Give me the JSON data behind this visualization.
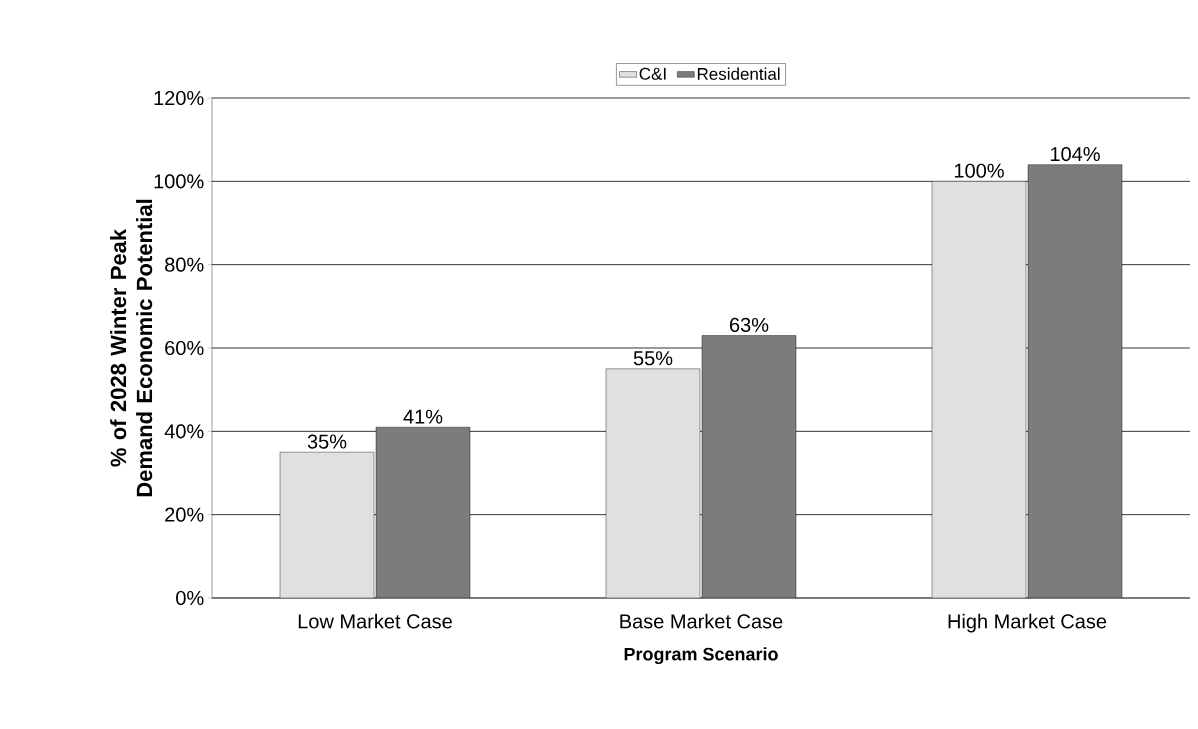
{
  "chart_data": {
    "type": "bar",
    "xlabel": "Program Scenario",
    "ylabel": "% of 2028 Winter Peak Demand Economic Potential",
    "categories": [
      "Low Market Case",
      "Base Market Case",
      "High Market Case"
    ],
    "series": [
      {
        "name": "C&I",
        "color": "#e0e0e0",
        "values": [
          35,
          55,
          100
        ],
        "value_labels": [
          "35%",
          "55%",
          "100%"
        ]
      },
      {
        "name": "Residential",
        "color": "#7c7c7c",
        "values": [
          41,
          63,
          104
        ],
        "value_labels": [
          "41%",
          "63%",
          "104%"
        ]
      }
    ],
    "ylim": [
      0,
      120
    ],
    "yticks": [
      {
        "value": 0,
        "label": "0%"
      },
      {
        "value": 20,
        "label": "20%"
      },
      {
        "value": 40,
        "label": "40%"
      },
      {
        "value": 60,
        "label": "60%"
      },
      {
        "value": 80,
        "label": "80%"
      },
      {
        "value": 100,
        "label": "100%"
      },
      {
        "value": 120,
        "label": "120%"
      }
    ],
    "grid": "y",
    "legend": "top"
  }
}
